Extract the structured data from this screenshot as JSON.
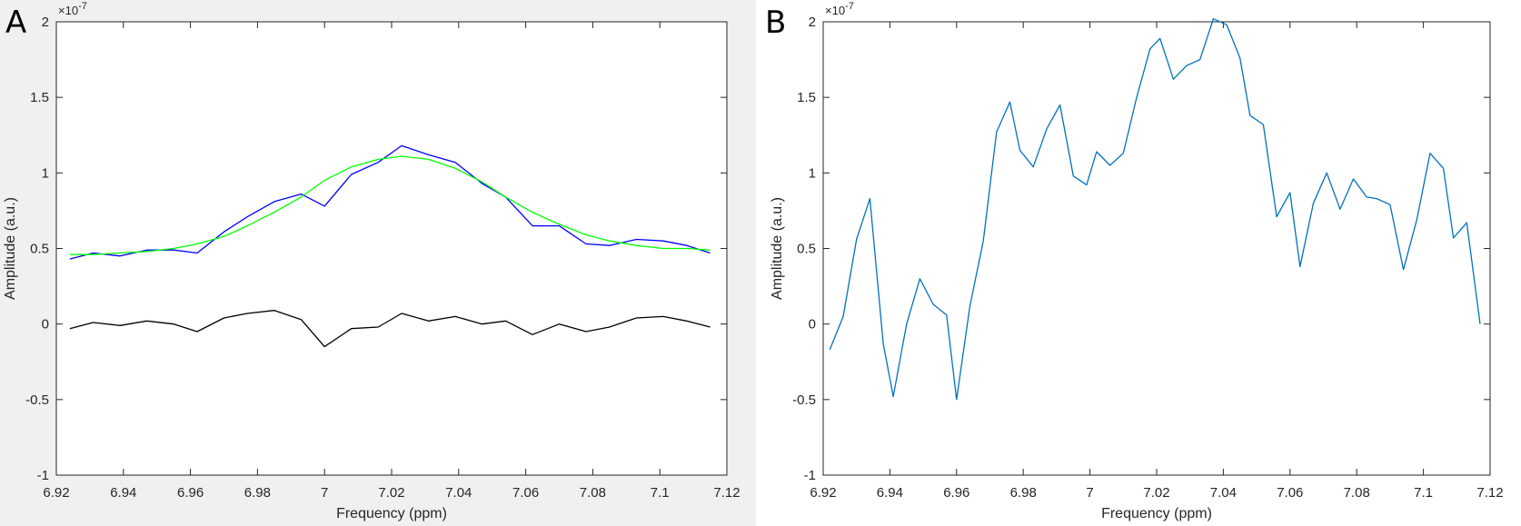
{
  "figure": {
    "background": "#f0f0f0"
  },
  "chart_data": [
    {
      "panel_label": "A",
      "type": "line",
      "xlabel": "Frequency (ppm)",
      "ylabel": "Amplitude (a.u.)",
      "y_exponent_label": "×10",
      "y_exponent_power": "-7",
      "xlim": [
        6.92,
        7.12
      ],
      "ylim": [
        -1,
        2
      ],
      "x_ticks": [
        6.92,
        6.94,
        6.96,
        6.98,
        7.0,
        7.02,
        7.04,
        7.06,
        7.08,
        7.1,
        7.12
      ],
      "x_tick_labels": [
        "6.92",
        "6.94",
        "6.96",
        "6.98",
        "7",
        "7.02",
        "7.04",
        "7.06",
        "7.08",
        "7.1",
        "7.12"
      ],
      "y_ticks": [
        -1,
        -0.5,
        0,
        0.5,
        1,
        1.5,
        2
      ],
      "y_tick_labels": [
        "-1",
        "-0.5",
        "0",
        "0.5",
        "1",
        "1.5",
        "2"
      ],
      "grid": false,
      "series": [
        {
          "color": "#0000ff",
          "x": [
            6.924,
            6.931,
            6.939,
            6.947,
            6.955,
            6.962,
            6.97,
            6.977,
            6.985,
            6.993,
            7.0,
            7.008,
            7.016,
            7.023,
            7.031,
            7.039,
            7.047,
            7.054,
            7.062,
            7.07,
            7.078,
            7.085,
            7.093,
            7.101,
            7.108,
            7.115
          ],
          "values": [
            0.43,
            0.47,
            0.45,
            0.49,
            0.49,
            0.47,
            0.61,
            0.71,
            0.81,
            0.86,
            0.78,
            0.99,
            1.07,
            1.18,
            1.12,
            1.07,
            0.93,
            0.84,
            0.65,
            0.65,
            0.53,
            0.52,
            0.56,
            0.55,
            0.52,
            0.47
          ]
        },
        {
          "color": "#00ff00",
          "x": [
            6.924,
            6.931,
            6.939,
            6.947,
            6.955,
            6.962,
            6.97,
            6.977,
            6.985,
            6.993,
            7.0,
            7.008,
            7.016,
            7.023,
            7.031,
            7.039,
            7.047,
            7.054,
            7.062,
            7.07,
            7.078,
            7.085,
            7.093,
            7.101,
            7.108,
            7.115
          ],
          "values": [
            0.46,
            0.46,
            0.47,
            0.48,
            0.5,
            0.53,
            0.58,
            0.65,
            0.74,
            0.84,
            0.95,
            1.04,
            1.09,
            1.11,
            1.09,
            1.03,
            0.94,
            0.84,
            0.74,
            0.66,
            0.59,
            0.55,
            0.52,
            0.5,
            0.5,
            0.49
          ]
        },
        {
          "color": "#000000",
          "x": [
            6.924,
            6.931,
            6.939,
            6.947,
            6.955,
            6.962,
            6.97,
            6.977,
            6.985,
            6.993,
            7.0,
            7.008,
            7.016,
            7.023,
            7.031,
            7.039,
            7.047,
            7.054,
            7.062,
            7.07,
            7.078,
            7.085,
            7.093,
            7.101,
            7.108,
            7.115
          ],
          "values": [
            -0.03,
            0.01,
            -0.01,
            0.02,
            0.0,
            -0.05,
            0.04,
            0.07,
            0.09,
            0.03,
            -0.15,
            -0.03,
            -0.02,
            0.07,
            0.02,
            0.05,
            0.0,
            0.02,
            -0.07,
            0.0,
            -0.05,
            -0.02,
            0.04,
            0.05,
            0.02,
            -0.02
          ]
        }
      ]
    },
    {
      "panel_label": "B",
      "type": "line",
      "xlabel": "Frequency (ppm)",
      "ylabel": "Amplitude (a.u.)",
      "y_exponent_label": "×10",
      "y_exponent_power": "-7",
      "xlim": [
        6.92,
        7.12
      ],
      "ylim": [
        -1,
        2
      ],
      "x_ticks": [
        6.92,
        6.94,
        6.96,
        6.98,
        7.0,
        7.02,
        7.04,
        7.06,
        7.08,
        7.1,
        7.12
      ],
      "x_tick_labels": [
        "6.92",
        "6.94",
        "6.96",
        "6.98",
        "7",
        "7.02",
        "7.04",
        "7.06",
        "7.08",
        "7.1",
        "7.12"
      ],
      "y_ticks": [
        -1,
        -0.5,
        0,
        0.5,
        1,
        1.5,
        2
      ],
      "y_tick_labels": [
        "-1",
        "-0.5",
        "0",
        "0.5",
        "1",
        "1.5",
        "2"
      ],
      "grid": false,
      "series": [
        {
          "color": "#0072bd",
          "x": [
            6.922,
            6.926,
            6.93,
            6.934,
            6.938,
            6.941,
            6.945,
            6.949,
            6.953,
            6.957,
            6.96,
            6.964,
            6.968,
            6.972,
            6.976,
            6.979,
            6.983,
            6.987,
            6.991,
            6.995,
            6.999,
            7.002,
            7.006,
            7.01,
            7.014,
            7.018,
            7.021,
            7.025,
            7.029,
            7.033,
            7.037,
            7.041,
            7.045,
            7.048,
            7.052,
            7.056,
            7.06,
            7.063,
            7.067,
            7.071,
            7.075,
            7.079,
            7.083,
            7.086,
            7.09,
            7.094,
            7.098,
            7.102,
            7.106,
            7.109,
            7.113,
            7.117
          ],
          "values": [
            -0.17,
            0.05,
            0.56,
            0.83,
            -0.13,
            -0.48,
            0.0,
            0.3,
            0.13,
            0.06,
            -0.5,
            0.12,
            0.55,
            1.27,
            1.47,
            1.15,
            1.04,
            1.29,
            1.45,
            0.98,
            0.92,
            1.14,
            1.05,
            1.13,
            1.5,
            1.82,
            1.89,
            1.62,
            1.71,
            1.75,
            2.02,
            1.98,
            1.76,
            1.38,
            1.32,
            0.71,
            0.87,
            0.38,
            0.8,
            1.0,
            0.76,
            0.96,
            0.84,
            0.83,
            0.79,
            0.36,
            0.69,
            1.13,
            1.03,
            0.57,
            0.67,
            0.0
          ]
        }
      ]
    }
  ]
}
